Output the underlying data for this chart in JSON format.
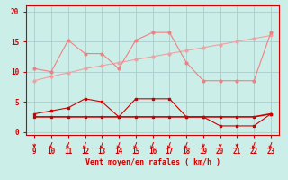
{
  "x": [
    9,
    10,
    11,
    12,
    13,
    14,
    15,
    16,
    17,
    18,
    19,
    20,
    21,
    22,
    23
  ],
  "line_trend": [
    8.5,
    9.2,
    9.8,
    10.5,
    11.0,
    11.5,
    12.0,
    12.5,
    13.0,
    13.5,
    14.0,
    14.5,
    15.0,
    15.5,
    16.0
  ],
  "line_gusts": [
    10.5,
    10.0,
    15.2,
    13.0,
    13.0,
    10.5,
    15.2,
    16.5,
    16.5,
    11.5,
    8.5,
    8.5,
    8.5,
    8.5,
    16.5
  ],
  "line_wind": [
    3.0,
    3.5,
    4.0,
    5.5,
    5.0,
    2.5,
    5.5,
    5.5,
    5.5,
    2.5,
    2.5,
    1.0,
    1.0,
    1.0,
    3.0
  ],
  "line_flat": [
    2.5,
    2.5,
    2.5,
    2.5,
    2.5,
    2.5,
    2.5,
    2.5,
    2.5,
    2.5,
    2.5,
    2.5,
    2.5,
    2.5,
    3.0
  ],
  "color_trend": "#f0a0a0",
  "color_gusts": "#f08080",
  "color_wind": "#cc0000",
  "color_flat": "#cc0000",
  "bg_color": "#cceee8",
  "grid_color": "#aacccc",
  "axis_color": "#cc0000",
  "text_color": "#cc0000",
  "xlabel": "Vent moyen/en rafales ( km/h )",
  "ylim": [
    -0.5,
    21
  ],
  "yticks": [
    0,
    5,
    10,
    15,
    20
  ],
  "xlim": [
    8.5,
    23.5
  ],
  "wind_angles": [
    270,
    225,
    225,
    225,
    225,
    225,
    225,
    225,
    225,
    225,
    270,
    270,
    270,
    225,
    225
  ]
}
